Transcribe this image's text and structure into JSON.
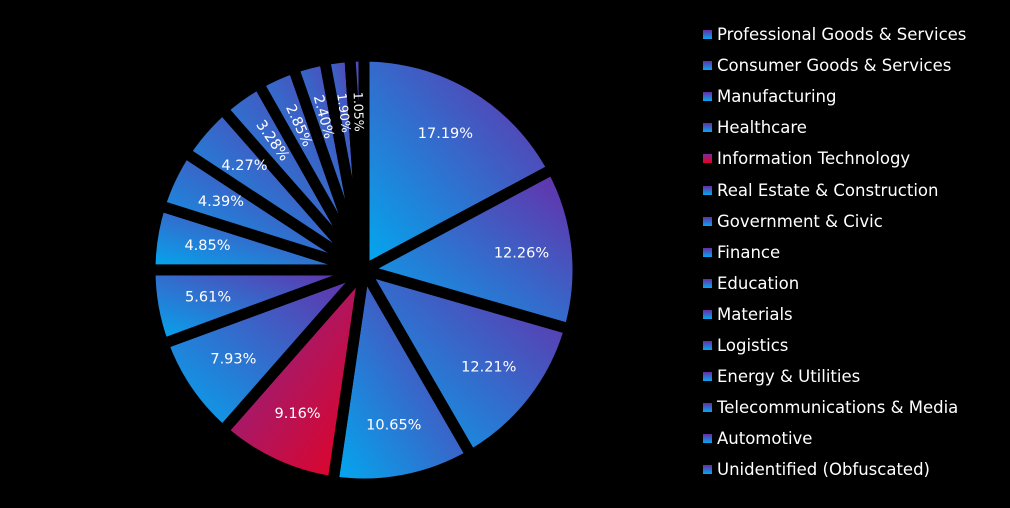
{
  "chart_data": {
    "type": "pie",
    "categories": [
      "Professional Goods & Services",
      "Consumer Goods & Services",
      "Manufacturing",
      "Healthcare",
      "Information Technology",
      "Real Estate & Construction",
      "Government & Civic",
      "Finance",
      "Education",
      "Materials",
      "Logistics",
      "Energy & Utilities",
      "Telecommunications & Media",
      "Automotive",
      "Unidentified (Obfuscated)"
    ],
    "values": [
      17.19,
      12.26,
      12.21,
      10.65,
      9.16,
      7.93,
      5.61,
      4.85,
      4.39,
      4.27,
      3.28,
      2.85,
      2.4,
      1.9,
      1.05
    ],
    "value_labels": [
      "17.19%",
      "12.26%",
      "12.21%",
      "10.65%",
      "9.16%",
      "7.93%",
      "5.61%",
      "4.85%",
      "4.39%",
      "4.27%",
      "3.28%",
      "2.85%",
      "2.40%",
      "1.90%",
      "1.05%"
    ],
    "legend_position": "right",
    "start_angle": "12 o'clock, clockwise",
    "colors": {
      "default_gradient": [
        "#00aaf0",
        "#6a2aa6"
      ],
      "highlight_gradient": [
        "#e8001e",
        "#7a2a9a"
      ],
      "highlight_category": "Information Technology",
      "background": "#000000",
      "text": "#ffffff"
    }
  }
}
